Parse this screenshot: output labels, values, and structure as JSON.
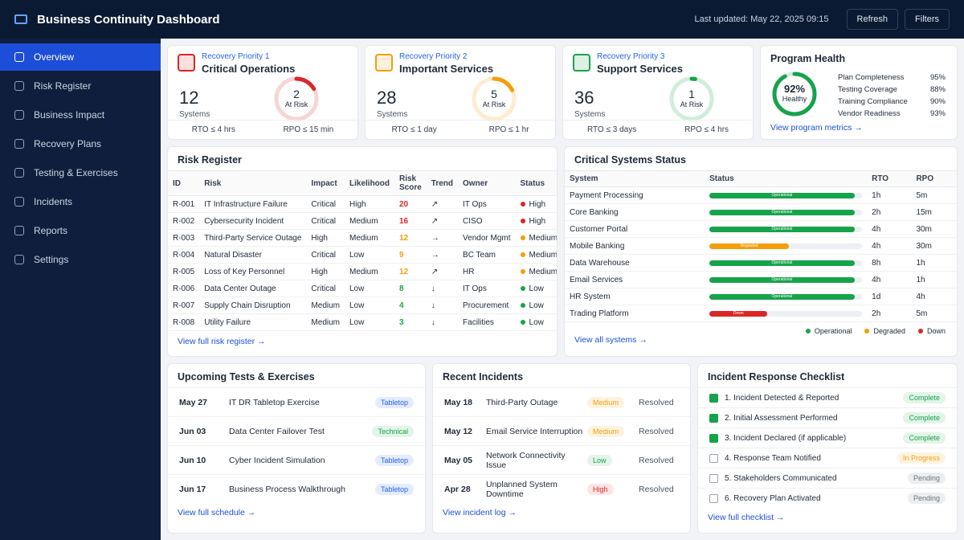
{
  "header": {
    "title": "Business Continuity Dashboard",
    "last_updated": "Last updated: May 22, 2025 09:15",
    "buttons": [
      "Refresh",
      "Filters"
    ]
  },
  "nav": {
    "items": [
      "Overview",
      "Risk Register",
      "Business Impact",
      "Recovery Plans",
      "Testing & Exercises",
      "Incidents",
      "Reports",
      "Settings"
    ],
    "active": 0
  },
  "colors": {
    "Critical": "#dc2626",
    "High": "#dc2626",
    "Medium": "#f59e0b",
    "Low": "#16a34a",
    "Operational": "#16a34a",
    "Degraded": "#f59e0b",
    "Down": "#dc2626",
    "Complete": "#16a34a",
    "In Progress": "#f59e0b",
    "Pending": "#6b7280",
    "Tabletop": "#2563eb",
    "Technical": "#16a34a"
  },
  "priority_cards": [
    {
      "label": "Recovery Priority 1",
      "title": "Critical Operations",
      "systems": 12,
      "systems_label": "Systems",
      "at_risk": 2,
      "at_risk_label": "At Risk",
      "rto": "RTO ≤ 4 hrs",
      "rpo": "RPO ≤ 15 min",
      "color": "#dc2626"
    },
    {
      "label": "Recovery Priority 2",
      "title": "Important Services",
      "systems": 28,
      "systems_label": "Systems",
      "at_risk": 5,
      "at_risk_label": "At Risk",
      "rto": "RTO ≤ 1 day",
      "rpo": "RPO ≤ 1 hr",
      "color": "#f59e0b"
    },
    {
      "label": "Recovery Priority 3",
      "title": "Support Services",
      "systems": 36,
      "systems_label": "Systems",
      "at_risk": 1,
      "at_risk_label": "At Risk",
      "rto": "RTO ≤ 3 days",
      "rpo": "RPO ≤ 4 hrs",
      "color": "#16a34a"
    }
  ],
  "program_health": {
    "title": "Program Health",
    "score": 92,
    "score_label": "92%",
    "status": "Healthy",
    "color": "#16a34a",
    "metrics": [
      {
        "name": "Plan Completeness",
        "value": "95%"
      },
      {
        "name": "Testing Coverage",
        "value": "88%"
      },
      {
        "name": "Training Compliance",
        "value": "90%"
      },
      {
        "name": "Vendor Readiness",
        "value": "93%"
      }
    ],
    "link": "View program metrics →"
  },
  "risk_register": {
    "title": "Risk Register",
    "columns": [
      "ID",
      "Risk",
      "Impact",
      "Likelihood",
      "Risk Score",
      "Trend",
      "Owner",
      "Status"
    ],
    "rows": [
      [
        "R-001",
        "IT Infrastructure Failure",
        "Critical",
        "High",
        20,
        "↗",
        "IT Ops",
        "High"
      ],
      [
        "R-002",
        "Cybersecurity Incident",
        "Critical",
        "Medium",
        16,
        "↗",
        "CISO",
        "High"
      ],
      [
        "R-003",
        "Third-Party Service Outage",
        "High",
        "Medium",
        12,
        "→",
        "Vendor Mgmt",
        "Medium"
      ],
      [
        "R-004",
        "Natural Disaster",
        "Critical",
        "Low",
        9,
        "→",
        "BC Team",
        "Medium"
      ],
      [
        "R-005",
        "Loss of Key Personnel",
        "High",
        "Medium",
        12,
        "↗",
        "HR",
        "Medium"
      ],
      [
        "R-006",
        "Data Center Outage",
        "Critical",
        "Low",
        8,
        "↓",
        "IT Ops",
        "Low"
      ],
      [
        "R-007",
        "Supply Chain Disruption",
        "Medium",
        "Low",
        4,
        "↓",
        "Procurement",
        "Low"
      ],
      [
        "R-008",
        "Utility Failure",
        "Medium",
        "Low",
        3,
        "↓",
        "Facilities",
        "Low"
      ]
    ],
    "link": "View full risk register →"
  },
  "systems": {
    "title": "Critical Systems Status",
    "columns": [
      "System",
      "Status",
      "RTO",
      "RPO"
    ],
    "rows": [
      {
        "system": "Payment Processing",
        "status": "Operational",
        "rto": "1h",
        "rpo": "5m"
      },
      {
        "system": "Core Banking",
        "status": "Operational",
        "rto": "2h",
        "rpo": "15m"
      },
      {
        "system": "Customer Portal",
        "status": "Operational",
        "rto": "4h",
        "rpo": "30m"
      },
      {
        "system": "Mobile Banking",
        "status": "Degraded",
        "rto": "4h",
        "rpo": "30m"
      },
      {
        "system": "Data Warehouse",
        "status": "Operational",
        "rto": "8h",
        "rpo": "1h"
      },
      {
        "system": "Email Services",
        "status": "Operational",
        "rto": "4h",
        "rpo": "1h"
      },
      {
        "system": "HR System",
        "status": "Operational",
        "rto": "1d",
        "rpo": "4h"
      },
      {
        "system": "Trading Platform",
        "status": "Down",
        "rto": "2h",
        "rpo": "5m"
      }
    ],
    "legend": [
      "Operational",
      "Degraded",
      "Down"
    ],
    "link": "View all systems →"
  },
  "tests": {
    "title": "Upcoming Tests & Exercises",
    "rows": [
      {
        "date": "May 27",
        "name": "IT DR Tabletop Exercise",
        "type": "Tabletop"
      },
      {
        "date": "Jun 03",
        "name": "Data Center Failover Test",
        "type": "Technical"
      },
      {
        "date": "Jun 10",
        "name": "Cyber Incident Simulation",
        "type": "Tabletop"
      },
      {
        "date": "Jun 17",
        "name": "Business Process Walkthrough",
        "type": "Tabletop"
      }
    ],
    "link": "View full schedule →"
  },
  "incidents": {
    "title": "Recent Incidents",
    "rows": [
      {
        "date": "May 18",
        "name": "Third-Party Outage",
        "severity": "Medium",
        "status": "Resolved"
      },
      {
        "date": "May 12",
        "name": "Email Service Interruption",
        "severity": "Medium",
        "status": "Resolved"
      },
      {
        "date": "May 05",
        "name": "Network Connectivity Issue",
        "severity": "Low",
        "status": "Resolved"
      },
      {
        "date": "Apr 28",
        "name": "Unplanned System Downtime",
        "severity": "High",
        "status": "Resolved"
      }
    ],
    "link": "View incident log →"
  },
  "checklist": {
    "title": "Incident Response Checklist",
    "items": [
      {
        "step": "1. Incident Detected & Reported",
        "status": "Complete",
        "done": true
      },
      {
        "step": "2. Initial Assessment Performed",
        "status": "Complete",
        "done": true
      },
      {
        "step": "3. Incident Declared (if applicable)",
        "status": "Complete",
        "done": true
      },
      {
        "step": "4. Response Team Notified",
        "status": "In Progress",
        "done": false
      },
      {
        "step": "5. Stakeholders Communicated",
        "status": "Pending",
        "done": false
      },
      {
        "step": "6. Recovery Plan Activated",
        "status": "Pending",
        "done": false
      }
    ],
    "link": "View full checklist →"
  }
}
